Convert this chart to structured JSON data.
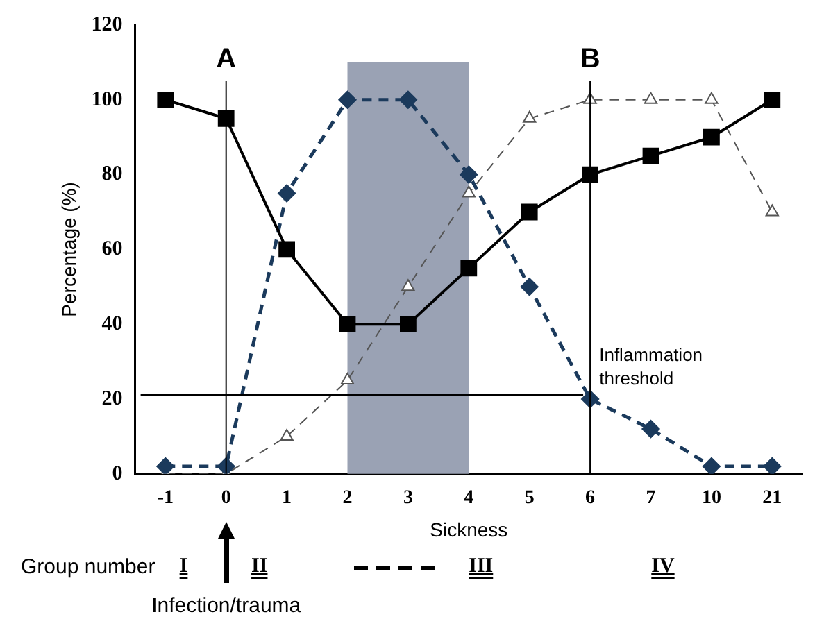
{
  "chart_data": {
    "type": "line",
    "xlabel": "Sickness",
    "ylabel": "Percentage (%)",
    "categories": [
      "-1",
      "0",
      "1",
      "2",
      "3",
      "4",
      "5",
      "6",
      "7",
      "10",
      "21"
    ],
    "series": [
      {
        "color": "#000000",
        "marker": "square",
        "line_style": "solid",
        "values": [
          100,
          95,
          60,
          40,
          40,
          55,
          70,
          80,
          85,
          90,
          100
        ]
      },
      {
        "color": "#1b3a5c",
        "marker": "diamond",
        "line_style": "dashed",
        "values": [
          2,
          2,
          75,
          100,
          100,
          80,
          50,
          20,
          12,
          2,
          2
        ]
      },
      {
        "color": "#555555",
        "marker": "triangle",
        "line_style": "dashed",
        "values": [
          0,
          0,
          10,
          25,
          50,
          75,
          95,
          100,
          100,
          100,
          70
        ]
      }
    ],
    "ylim": [
      0,
      120
    ],
    "yticks": [
      0,
      20,
      40,
      60,
      80,
      100,
      120
    ],
    "grid": false,
    "legend": false,
    "ref_lines": [
      {
        "axis": "x",
        "value": "0",
        "label": "A",
        "color": "#000000"
      },
      {
        "axis": "x",
        "value": "6",
        "label": "B",
        "color": "#000000"
      },
      {
        "axis": "y",
        "value": 21,
        "label": "Inflammation threshold",
        "color": "#000000"
      }
    ],
    "bands": [
      {
        "axis": "x",
        "from": "2",
        "to": "4",
        "color": "#9aa2b4"
      }
    ],
    "annotations": [
      "Group number",
      "I",
      "II",
      "III",
      "IV",
      "Infection/trauma"
    ]
  }
}
